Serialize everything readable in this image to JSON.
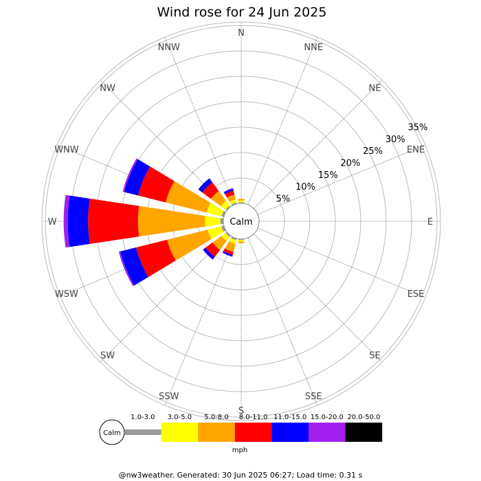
{
  "chart_data": {
    "type": "wind-rose",
    "title": "Wind rose for 24 Jun 2025",
    "calm_label": "Calm",
    "directions": [
      "N",
      "NNE",
      "NE",
      "ENE",
      "E",
      "ESE",
      "SE",
      "SSE",
      "S",
      "SSW",
      "SW",
      "WSW",
      "W",
      "WNW",
      "NW",
      "NNW"
    ],
    "rings_percent": [
      5,
      10,
      15,
      20,
      25,
      30,
      35
    ],
    "ring_labels": [
      "5%",
      "10%",
      "15%",
      "20%",
      "25%",
      "30%",
      "35%"
    ],
    "speed_bins": [
      {
        "label": "1.0-3.0",
        "color": "#999999"
      },
      {
        "label": "3.0-5.0",
        "color": "#ffff00"
      },
      {
        "label": "5.0-8.0",
        "color": "#ffa500"
      },
      {
        "label": "8.0-11.0",
        "color": "#ff0000"
      },
      {
        "label": "11.0-15.0",
        "color": "#0000ff"
      },
      {
        "label": "15.0-20.0",
        "color": "#a020f0"
      },
      {
        "label": "20.0-50.0",
        "color": "#000000"
      }
    ],
    "unit": "mph",
    "series_percent": {
      "N": [
        0.2,
        0.4,
        0.3,
        0,
        0,
        0,
        0
      ],
      "NNE": [
        0,
        0,
        0,
        0,
        0,
        0,
        0
      ],
      "NE": [
        0,
        0,
        0,
        0,
        0,
        0,
        0
      ],
      "ENE": [
        0,
        0,
        0,
        0,
        0,
        0,
        0
      ],
      "E": [
        0,
        0,
        0,
        0,
        0,
        0,
        0
      ],
      "ESE": [
        0,
        0,
        0,
        0,
        0,
        0,
        0
      ],
      "SE": [
        0,
        0,
        0,
        0,
        0,
        0,
        0
      ],
      "SSE": [
        0,
        0,
        0,
        0,
        0,
        0,
        0
      ],
      "S": [
        0.2,
        0.3,
        0.3,
        0,
        0,
        0,
        0
      ],
      "SSW": [
        0.3,
        0.8,
        1.6,
        0.6,
        0.3,
        0.1,
        0
      ],
      "SW": [
        0.3,
        1.0,
        2.2,
        1.7,
        0.6,
        0.1,
        0
      ],
      "WSW": [
        0.5,
        2.8,
        8.2,
        6.3,
        3.2,
        0.3,
        0
      ],
      "W": [
        0.6,
        3.0,
        13.2,
        9.8,
        4.0,
        0.8,
        0
      ],
      "WNW": [
        0.5,
        3.0,
        8.3,
        5.6,
        2.8,
        0.3,
        0
      ],
      "NW": [
        0.3,
        1.2,
        2.4,
        2.1,
        1.0,
        0,
        0
      ],
      "NNW": [
        0.3,
        0.6,
        1.0,
        0.8,
        0.4,
        0.1,
        0
      ]
    }
  },
  "footer": "@nw3weather. Generated: 30 Jun 2025 06:27; Load time: 0.31 s"
}
